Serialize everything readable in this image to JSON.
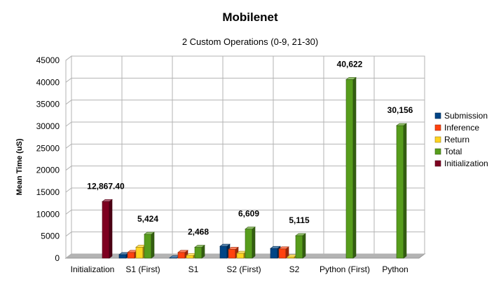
{
  "chart_data": {
    "type": "bar",
    "title": "Mobilenet",
    "subtitle": "2 Custom Operations (0-9, 21-30)",
    "ylabel": "Mean Time (uS)",
    "xlabel": "",
    "ylim": [
      0,
      45000
    ],
    "yticks": [
      0,
      5000,
      10000,
      15000,
      20000,
      25000,
      30000,
      35000,
      40000,
      45000
    ],
    "grid": true,
    "legend_position": "right",
    "categories": [
      "Initialization",
      "S1 (First)",
      "S1",
      "S2 (First)",
      "S2",
      "Python (First)",
      "Python"
    ],
    "series": [
      {
        "name": "Submission",
        "color": "#004586",
        "values": [
          0,
          800,
          50,
          2700,
          2200,
          0,
          0
        ]
      },
      {
        "name": "Inference",
        "color": "#ff420e",
        "values": [
          0,
          1300,
          1300,
          2000,
          2100,
          0,
          0
        ]
      },
      {
        "name": "Return",
        "color": "#ffd320",
        "values": [
          0,
          2500,
          600,
          1100,
          300,
          0,
          0
        ]
      },
      {
        "name": "Total",
        "color": "#579d1c",
        "values": [
          0,
          5424,
          2468,
          6609,
          5115,
          40622,
          30156
        ]
      },
      {
        "name": "Initialization",
        "color": "#7e0021",
        "values": [
          12867.4,
          0,
          0,
          0,
          0,
          0,
          0
        ]
      }
    ],
    "data_labels": [
      {
        "category": "Initialization",
        "series": "Initialization",
        "text": "12,867.40"
      },
      {
        "category": "S1 (First)",
        "series": "Total",
        "text": "5,424"
      },
      {
        "category": "S1",
        "series": "Total",
        "text": "2,468"
      },
      {
        "category": "S2 (First)",
        "series": "Total",
        "text": "6,609"
      },
      {
        "category": "S2",
        "series": "Total",
        "text": "5,115"
      },
      {
        "category": "Python (First)",
        "series": "Total",
        "text": "40,622"
      },
      {
        "category": "Python",
        "series": "Total",
        "text": "30,156"
      }
    ]
  }
}
